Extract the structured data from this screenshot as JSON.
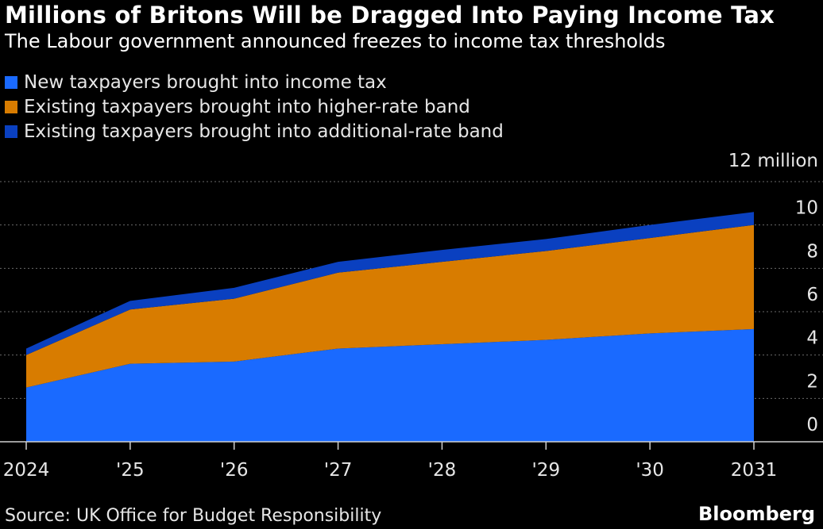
{
  "header": {
    "title": "Millions of Britons Will be Dragged Into Paying Income Tax",
    "subtitle": "The Labour government announced freezes to income tax thresholds"
  },
  "legend": [
    {
      "label": "New taxpayers brought into income tax",
      "color": "#1a6aff"
    },
    {
      "label": "Existing taxpayers brought into higher-rate band",
      "color": "#d87c00"
    },
    {
      "label": "Existing taxpayers brought into additional-rate band",
      "color": "#0a40c0"
    }
  ],
  "footer": {
    "source": "Source: UK Office for Budget Responsibility",
    "brand": "Bloomberg"
  },
  "chart_data": {
    "type": "area",
    "stacked": true,
    "title": "Millions of Britons Will be Dragged Into Paying Income Tax",
    "unit_label": "12 million",
    "x": [
      2024,
      2025,
      2026,
      2027,
      2028,
      2029,
      2030,
      2031
    ],
    "x_tick_labels": [
      "2024",
      "'25",
      "'26",
      "'27",
      "'28",
      "'29",
      "'30",
      "2031"
    ],
    "y_ticks": [
      0,
      2,
      4,
      6,
      8,
      10,
      12
    ],
    "y_tick_labels": [
      "0",
      "2",
      "4",
      "6",
      "8",
      "10",
      ""
    ],
    "ylim": [
      0,
      12
    ],
    "grid": true,
    "series": [
      {
        "name": "New taxpayers brought into income tax",
        "color": "#1a6aff",
        "values": [
          2.5,
          3.6,
          3.7,
          4.3,
          4.5,
          4.7,
          5.0,
          5.2
        ]
      },
      {
        "name": "Existing taxpayers brought into higher-rate band",
        "color": "#d87c00",
        "values": [
          1.5,
          2.5,
          2.9,
          3.5,
          3.8,
          4.1,
          4.4,
          4.8
        ]
      },
      {
        "name": "Existing taxpayers brought into additional-rate band",
        "color": "#0a40c0",
        "values": [
          0.3,
          0.4,
          0.5,
          0.5,
          0.55,
          0.55,
          0.6,
          0.6
        ]
      }
    ]
  }
}
